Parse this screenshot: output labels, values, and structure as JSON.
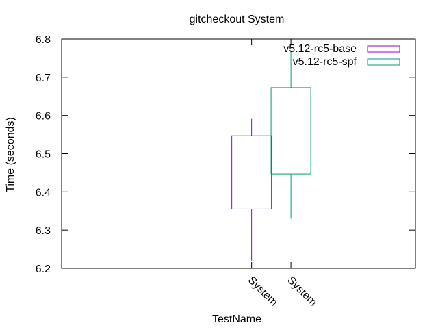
{
  "chart_data": {
    "type": "box",
    "title": "gitcheckout System",
    "xlabel": "TestName",
    "ylabel": "Time (seconds)",
    "ylim": [
      6.2,
      6.8
    ],
    "yticks": [
      "6.2",
      "6.3",
      "6.4",
      "6.5",
      "6.6",
      "6.7",
      "6.8"
    ],
    "xlim": [
      -0.6,
      2.1
    ],
    "categories": [
      "System",
      "System"
    ],
    "category_positions": [
      0.85,
      1.15
    ],
    "legend_position": "top-right",
    "grid": false,
    "series": [
      {
        "name": "v5.12-rc5-base",
        "color": "#9400d3",
        "x": 0.85,
        "min": 6.22,
        "q1": 6.355,
        "q3": 6.547,
        "max": 6.591
      },
      {
        "name": "v5.12-rc5-spf",
        "color": "#009e73",
        "x": 1.15,
        "min": 6.33,
        "q1": 6.447,
        "q3": 6.673,
        "max": 6.77
      }
    ]
  }
}
